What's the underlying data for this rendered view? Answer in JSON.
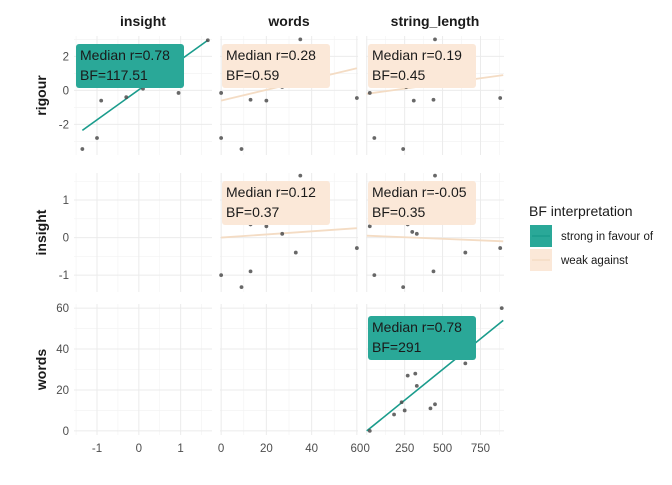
{
  "chart_data": {
    "type": "scatter",
    "columns": [
      "insight",
      "words",
      "string_length"
    ],
    "rows": [
      "rigour",
      "insight",
      "words"
    ],
    "legend": {
      "title": "BF interpretation",
      "entries": [
        {
          "key": "strong",
          "label": "strong in favour of",
          "color": "#1a9c8c",
          "fill": "#2aa898"
        },
        {
          "key": "weak",
          "label": "weak against",
          "color": "#f4dcc4",
          "fill": "#fbe8d8"
        }
      ]
    },
    "axes": {
      "x": {
        "insight": {
          "range": [
            -1.55,
            1.75
          ],
          "ticks": [
            -1,
            0,
            1
          ]
        },
        "words": {
          "range": [
            -0.5,
            60.5
          ],
          "ticks": [
            0,
            20,
            40,
            60
          ]
        },
        "string_length": {
          "range": [
            -5,
            905
          ],
          "ticks": [
            0,
            250,
            500,
            750
          ]
        }
      },
      "y": {
        "rigour": {
          "range": [
            -3.8,
            3.2
          ],
          "ticks": [
            -2,
            0,
            2
          ]
        },
        "insight": {
          "range": [
            -1.45,
            1.72
          ],
          "ticks": [
            -1,
            0,
            1
          ]
        },
        "words": {
          "range": [
            -2,
            62
          ],
          "ticks": [
            0,
            20,
            40,
            60
          ]
        }
      }
    },
    "panels": [
      {
        "row": "rigour",
        "col": "insight",
        "interpretation": "strong",
        "annotation": [
          "Median r=0.78",
          "BF=117.51"
        ],
        "line": [
          [
            -1.35,
            -2.35
          ],
          [
            1.65,
            2.95
          ]
        ],
        "points": [
          [
            -1.35,
            -3.45
          ],
          [
            -1.0,
            -2.8
          ],
          [
            -0.9,
            -0.6
          ],
          [
            -0.3,
            -0.4
          ],
          [
            0.1,
            0.1
          ],
          [
            0.2,
            0.3
          ],
          [
            0.3,
            0.7
          ],
          [
            0.5,
            1.2
          ],
          [
            0.95,
            -0.15
          ],
          [
            1.65,
            2.95
          ]
        ]
      },
      {
        "row": "rigour",
        "col": "words",
        "interpretation": "weak",
        "annotation": [
          "Median r=0.28",
          "BF=0.59"
        ],
        "line": [
          [
            0,
            -0.6
          ],
          [
            60,
            1.3
          ]
        ],
        "points": [
          [
            0,
            -0.15
          ],
          [
            0,
            -2.8
          ],
          [
            9,
            -3.45
          ],
          [
            13,
            -0.55
          ],
          [
            20,
            -0.6
          ],
          [
            27,
            0.2
          ],
          [
            30,
            0.5
          ],
          [
            33,
            0.95
          ],
          [
            35,
            3.0
          ],
          [
            60,
            -0.45
          ]
        ]
      },
      {
        "row": "rigour",
        "col": "string_length",
        "interpretation": "weak",
        "annotation": [
          "Median r=0.19",
          "BF=0.45"
        ],
        "line": [
          [
            0,
            -0.2
          ],
          [
            900,
            0.9
          ]
        ],
        "points": [
          [
            20,
            -0.15
          ],
          [
            50,
            -2.8
          ],
          [
            240,
            -3.45
          ],
          [
            260,
            0.2
          ],
          [
            310,
            -0.6
          ],
          [
            370,
            0.5
          ],
          [
            440,
            -0.55
          ],
          [
            450,
            3.0
          ],
          [
            650,
            0.9
          ],
          [
            880,
            -0.45
          ]
        ]
      },
      {
        "row": "insight",
        "col": "insight",
        "interpretation": "",
        "annotation": [],
        "line": [],
        "points": []
      },
      {
        "row": "insight",
        "col": "words",
        "interpretation": "weak",
        "annotation": [
          "Median r=0.12",
          "BF=0.37"
        ],
        "line": [
          [
            0,
            0.0
          ],
          [
            60,
            0.25
          ]
        ],
        "points": [
          [
            0,
            -1.0
          ],
          [
            9,
            -1.32
          ],
          [
            13,
            -0.9
          ],
          [
            13,
            0.35
          ],
          [
            20,
            0.3
          ],
          [
            27,
            0.1
          ],
          [
            30,
            0.4
          ],
          [
            33,
            -0.4
          ],
          [
            35,
            1.65
          ],
          [
            60,
            -0.28
          ]
        ]
      },
      {
        "row": "insight",
        "col": "string_length",
        "interpretation": "weak",
        "annotation": [
          "Median r=-0.05",
          "BF=0.35"
        ],
        "line": [
          [
            0,
            0.05
          ],
          [
            900,
            -0.1
          ]
        ],
        "points": [
          [
            20,
            0.3
          ],
          [
            50,
            -1.0
          ],
          [
            240,
            -1.32
          ],
          [
            270,
            0.35
          ],
          [
            300,
            0.15
          ],
          [
            330,
            0.1
          ],
          [
            440,
            -0.9
          ],
          [
            450,
            1.65
          ],
          [
            650,
            -0.4
          ],
          [
            880,
            -0.28
          ]
        ]
      },
      {
        "row": "words",
        "col": "insight",
        "interpretation": "",
        "annotation": [],
        "line": [],
        "points": []
      },
      {
        "row": "words",
        "col": "words",
        "interpretation": "",
        "annotation": [],
        "line": [],
        "points": []
      },
      {
        "row": "words",
        "col": "string_length",
        "interpretation": "strong",
        "annotation": [
          "Median r=0.78",
          "BF=291"
        ],
        "line": [
          [
            0,
            0
          ],
          [
            900,
            54
          ]
        ],
        "points": [
          [
            20,
            0
          ],
          [
            180,
            8
          ],
          [
            230,
            14
          ],
          [
            250,
            10
          ],
          [
            270,
            27
          ],
          [
            320,
            28
          ],
          [
            330,
            22
          ],
          [
            420,
            11
          ],
          [
            450,
            13
          ],
          [
            650,
            33
          ],
          [
            890,
            60
          ]
        ]
      }
    ]
  }
}
